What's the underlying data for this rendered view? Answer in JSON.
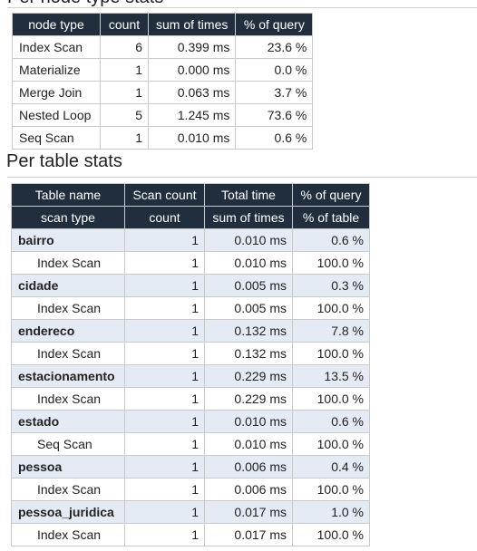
{
  "top_section": {
    "clipped_heading": "Per node type stats",
    "columns": [
      "node type",
      "count",
      "sum of times",
      "% of query"
    ],
    "rows": [
      [
        "Index Scan",
        "6",
        "0.399 ms",
        "23.6 %"
      ],
      [
        "Materialize",
        "1",
        "0.000 ms",
        "0.0 %"
      ],
      [
        "Merge Join",
        "1",
        "0.063 ms",
        "3.7 %"
      ],
      [
        "Nested Loop",
        "5",
        "1.245 ms",
        "73.6 %"
      ],
      [
        "Seq Scan",
        "1",
        "0.010 ms",
        "0.6 %"
      ]
    ]
  },
  "table_section": {
    "title": "Per table stats",
    "header1": [
      "Table name",
      "Scan count",
      "Total time",
      "% of query"
    ],
    "header2": [
      "scan type",
      "count",
      "sum of times",
      "% of table"
    ],
    "groups": [
      {
        "table": [
          "bairro",
          "1",
          "0.010 ms",
          "0.6 %"
        ],
        "scans": [
          [
            "Index Scan",
            "1",
            "0.010 ms",
            "100.0 %"
          ]
        ]
      },
      {
        "table": [
          "cidade",
          "1",
          "0.005 ms",
          "0.3 %"
        ],
        "scans": [
          [
            "Index Scan",
            "1",
            "0.005 ms",
            "100.0 %"
          ]
        ]
      },
      {
        "table": [
          "endereco",
          "1",
          "0.132 ms",
          "7.8 %"
        ],
        "scans": [
          [
            "Index Scan",
            "1",
            "0.132 ms",
            "100.0 %"
          ]
        ]
      },
      {
        "table": [
          "estacionamento",
          "1",
          "0.229 ms",
          "13.5 %"
        ],
        "scans": [
          [
            "Index Scan",
            "1",
            "0.229 ms",
            "100.0 %"
          ]
        ]
      },
      {
        "table": [
          "estado",
          "1",
          "0.010 ms",
          "0.6 %"
        ],
        "scans": [
          [
            "Seq Scan",
            "1",
            "0.010 ms",
            "100.0 %"
          ]
        ]
      },
      {
        "table": [
          "pessoa",
          "1",
          "0.006 ms",
          "0.4 %"
        ],
        "scans": [
          [
            "Index Scan",
            "1",
            "0.006 ms",
            "100.0 %"
          ]
        ]
      },
      {
        "table": [
          "pessoa_juridica",
          "1",
          "0.017 ms",
          "1.0 %"
        ],
        "scans": [
          [
            "Index Scan",
            "1",
            "0.017 ms",
            "100.0 %"
          ]
        ]
      }
    ]
  }
}
